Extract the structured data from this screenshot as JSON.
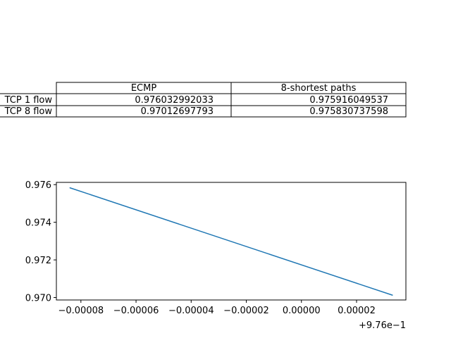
{
  "chart_data": [
    {
      "type": "table",
      "columns": [
        "ECMP",
        "8-shortest paths"
      ],
      "rows": [
        {
          "label": "TCP 1 flow",
          "cells": [
            "0.976032992033",
            "0.975916049537"
          ]
        },
        {
          "label": "TCP 8 flow",
          "cells": [
            "0.97012697793",
            "0.975830737598"
          ]
        }
      ]
    },
    {
      "type": "line",
      "title": "",
      "xlabel": "",
      "ylabel": "",
      "x_offset_label": "+9.76e−1",
      "xlim": [
        -8.89e-05,
        3.79e-05
      ],
      "ylim": [
        0.96987,
        0.97612
      ],
      "x_ticks": [
        {
          "value": -8e-05,
          "label": "−0.00008"
        },
        {
          "value": -6e-05,
          "label": "−0.00006"
        },
        {
          "value": -4e-05,
          "label": "−0.00004"
        },
        {
          "value": -2e-05,
          "label": "−0.00002"
        },
        {
          "value": 0.0,
          "label": "0.00000"
        },
        {
          "value": 2e-05,
          "label": "0.00002"
        }
      ],
      "y_ticks": [
        {
          "value": 0.97,
          "label": "0.970"
        },
        {
          "value": 0.972,
          "label": "0.972"
        },
        {
          "value": 0.974,
          "label": "0.974"
        },
        {
          "value": 0.976,
          "label": "0.976"
        }
      ],
      "series": [
        {
          "name": "line",
          "color": "#1f77b4",
          "x": [
            -8.3950463e-05,
            3.2992033e-05
          ],
          "y": [
            0.975830737598,
            0.97012697793
          ]
        }
      ]
    }
  ]
}
